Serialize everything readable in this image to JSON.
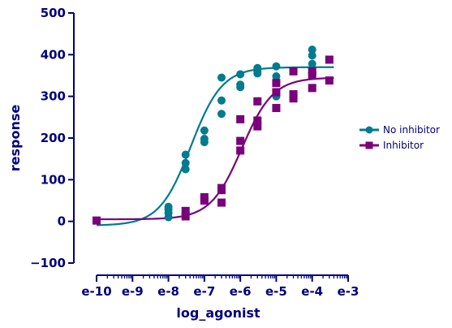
{
  "chart_data": {
    "type": "scatter",
    "title": "",
    "xlabel": "log_agonist",
    "ylabel": "response",
    "x_scale": "log",
    "xlim": [
      1e-10,
      0.001
    ],
    "ylim": [
      -100,
      500
    ],
    "x_tick_labels": [
      "e-10",
      "e-9",
      "e-8",
      "e-7",
      "e-6",
      "e-5",
      "e-4",
      "e-3"
    ],
    "x_tick_values": [
      1e-10,
      1e-09,
      1e-08,
      1e-07,
      1e-06,
      1e-05,
      0.0001,
      0.001
    ],
    "y_ticks": [
      -100,
      0,
      100,
      200,
      300,
      400,
      500
    ],
    "grid": false,
    "legend_position": "right",
    "series": [
      {
        "name": "No inhibitor",
        "color": "#007b8f",
        "marker": "circle",
        "points": [
          [
            1e-08,
            10
          ],
          [
            1e-08,
            20
          ],
          [
            1e-08,
            28
          ],
          [
            1e-08,
            35
          ],
          [
            3e-08,
            125
          ],
          [
            3e-08,
            140
          ],
          [
            3e-08,
            160
          ],
          [
            1e-07,
            190
          ],
          [
            1e-07,
            198
          ],
          [
            1e-07,
            218
          ],
          [
            3e-07,
            258
          ],
          [
            3e-07,
            290
          ],
          [
            3e-07,
            345
          ],
          [
            1e-06,
            322
          ],
          [
            1e-06,
            328
          ],
          [
            1e-06,
            353
          ],
          [
            3e-06,
            355
          ],
          [
            3e-06,
            360
          ],
          [
            3e-06,
            368
          ],
          [
            1e-05,
            300
          ],
          [
            1e-05,
            348
          ],
          [
            1e-05,
            372
          ],
          [
            0.0001,
            378
          ],
          [
            0.0001,
            398
          ],
          [
            0.0001,
            412
          ]
        ],
        "fit": {
          "bottom": -10,
          "top": 370,
          "ec50": 4.2e-08,
          "hill": 1.0
        }
      },
      {
        "name": "Inhibitor",
        "color": "#7a007a",
        "marker": "square",
        "points": [
          [
            1e-10,
            2
          ],
          [
            3e-08,
            12
          ],
          [
            3e-08,
            25
          ],
          [
            1e-07,
            50
          ],
          [
            1e-07,
            58
          ],
          [
            3e-07,
            45
          ],
          [
            3e-07,
            75
          ],
          [
            3e-07,
            80
          ],
          [
            1e-06,
            170
          ],
          [
            1e-06,
            193
          ],
          [
            1e-06,
            245
          ],
          [
            3e-06,
            228
          ],
          [
            3e-06,
            242
          ],
          [
            3e-06,
            288
          ],
          [
            1e-05,
            272
          ],
          [
            1e-05,
            310
          ],
          [
            1e-05,
            332
          ],
          [
            3e-05,
            295
          ],
          [
            3e-05,
            305
          ],
          [
            3e-05,
            360
          ],
          [
            0.0001,
            320
          ],
          [
            0.0001,
            350
          ],
          [
            0.0001,
            360
          ],
          [
            0.0003,
            338
          ],
          [
            0.0003,
            388
          ]
        ],
        "fit": {
          "bottom": 5,
          "top": 345,
          "ec50": 1.1e-06,
          "hill": 1.0
        }
      }
    ]
  }
}
